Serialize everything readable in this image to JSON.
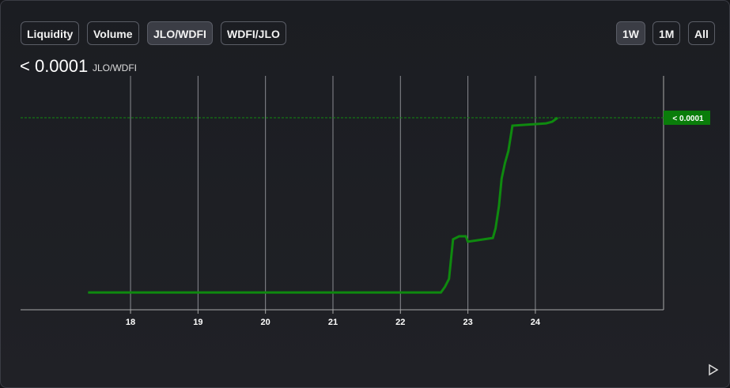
{
  "buttons": {
    "metric": [
      "Liquidity",
      "Volume",
      "JLO/WDFI",
      "WDFI/JLO"
    ],
    "active_metric": 2,
    "range": [
      "1W",
      "1M",
      "All"
    ],
    "active_range": 0
  },
  "header": {
    "price": "< 0.0001",
    "pair": "JLO/WDFI"
  },
  "chart_data": {
    "type": "line",
    "color": "#0f8a0f",
    "x": [
      17.37,
      22.6,
      22.66,
      22.72,
      22.78,
      22.87,
      22.97,
      23.0,
      23.37,
      23.41,
      23.46,
      23.5,
      23.55,
      23.6,
      23.66,
      24.16,
      24.25,
      24.33
    ],
    "values": [
      7.4e-06,
      7.4e-06,
      9.8e-06,
      1.32e-05,
      3.01e-05,
      3.14e-05,
      3.14e-05,
      2.91e-05,
      3.07e-05,
      3.48e-05,
      4.43e-05,
      5.61e-05,
      6.28e-05,
      6.79e-05,
      7.87e-05,
      7.97e-05,
      8.04e-05,
      8.21e-05
    ],
    "xlim": [
      16.37,
      25.9
    ],
    "ylim": [
      0,
      0.0001
    ],
    "xticks": [
      18,
      19,
      20,
      21,
      22,
      23,
      24
    ],
    "grid": true,
    "current_price_label": "< 0.0001"
  }
}
